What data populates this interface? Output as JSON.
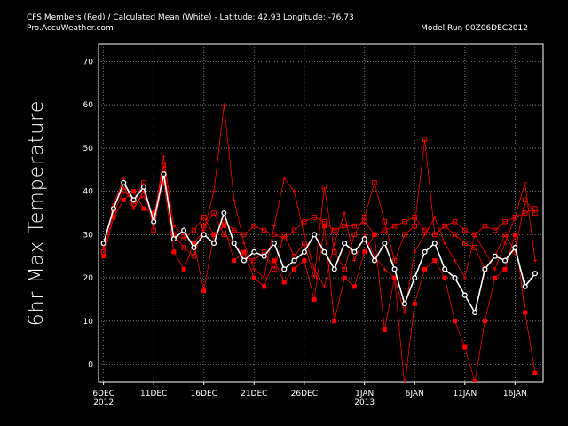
{
  "chart_data": {
    "type": "line",
    "title": "CFS Members (Red) / Calculated Mean (White)  - Latitude: 42.93  Longitude: -76.73",
    "subtitle": "Pro.AccuWeather.com",
    "model_run": "Model Run   00Z06DEC2012",
    "y_label": "6hr Max Temperature",
    "grid": true,
    "x": [
      0,
      1,
      2,
      3,
      4,
      5,
      6,
      7,
      8,
      9,
      10,
      11,
      12,
      13,
      14,
      15,
      16,
      17,
      18,
      19,
      20,
      21,
      22,
      23,
      24,
      25,
      26,
      27,
      28,
      29,
      30,
      31,
      32,
      33,
      34,
      35,
      36,
      37,
      38,
      39,
      40,
      41,
      42,
      43
    ],
    "xlim": [
      -0.5,
      43.8
    ],
    "xticks": [
      {
        "value": 0,
        "label": "6DEC 2012"
      },
      {
        "value": 5,
        "label": "11DEC"
      },
      {
        "value": 10,
        "label": "16DEC"
      },
      {
        "value": 15,
        "label": "21DEC"
      },
      {
        "value": 20,
        "label": "26DEC"
      },
      {
        "value": 26,
        "label": "1JAN 2013"
      },
      {
        "value": 31,
        "label": "6JAN"
      },
      {
        "value": 36,
        "label": "11JAN"
      },
      {
        "value": 41,
        "label": "16JAN"
      }
    ],
    "ylim": [
      -4,
      74
    ],
    "yticks": [
      0,
      10,
      20,
      30,
      40,
      50,
      60,
      70
    ],
    "series": [
      {
        "color": "#ff0000",
        "marker": "cross",
        "values": [
          27,
          37,
          43,
          36,
          40,
          33,
          48,
          32,
          30,
          28,
          31,
          40,
          60,
          38,
          28,
          22,
          20,
          32,
          43,
          40,
          30,
          22,
          18,
          28,
          35,
          24,
          30,
          25,
          22,
          20,
          12,
          26,
          30,
          34,
          28,
          24,
          20,
          30,
          26,
          22,
          28,
          34,
          42,
          24
        ]
      },
      {
        "color": "#ff0000",
        "marker": "square-open",
        "values": [
          26,
          35,
          40,
          38,
          42,
          31,
          44,
          30,
          27,
          25,
          32,
          35,
          30,
          28,
          25,
          24,
          26,
          22,
          30,
          25,
          28,
          20,
          41,
          26,
          22,
          30,
          34,
          42,
          33,
          24,
          30,
          32,
          52,
          30,
          32,
          30,
          28,
          27,
          22,
          25,
          30,
          26,
          38,
          35
        ]
      },
      {
        "color": "#ff0000",
        "marker": "square",
        "values": [
          25,
          34,
          38,
          40,
          36,
          35,
          42,
          26,
          22,
          28,
          17,
          30,
          32,
          24,
          26,
          20,
          18,
          24,
          19,
          22,
          24,
          15,
          32,
          10,
          20,
          18,
          26,
          30,
          8,
          20,
          -5,
          14,
          22,
          24,
          20,
          10,
          4,
          -4,
          10,
          20,
          22,
          30,
          12,
          -2
        ]
      },
      {
        "color": "#ff0000",
        "marker": "square-open",
        "values": [
          28,
          36,
          41,
          37,
          39,
          34,
          46,
          30,
          29,
          31,
          34,
          30,
          33,
          31,
          30,
          32,
          31,
          30,
          29,
          31,
          33,
          34,
          33,
          31,
          32,
          32,
          33,
          30,
          31,
          32,
          33,
          34,
          31,
          30,
          32,
          33,
          31,
          30,
          32,
          31,
          33,
          34,
          35,
          36
        ]
      },
      {
        "color": "#ffffff",
        "marker": "circle",
        "values": [
          28,
          36,
          42,
          38,
          41,
          33,
          44,
          29,
          31,
          27,
          30,
          28,
          35,
          28,
          24,
          26,
          25,
          28,
          22,
          24,
          26,
          30,
          26,
          22,
          28,
          26,
          29,
          24,
          28,
          22,
          14,
          20,
          26,
          28,
          22,
          20,
          16,
          12,
          22,
          25,
          24,
          27,
          18,
          21
        ]
      }
    ]
  }
}
